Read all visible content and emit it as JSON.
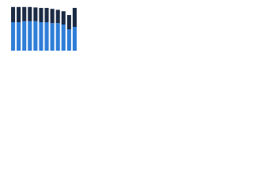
{
  "chart_data": {
    "type": "stacked_bar",
    "series": [
      {
        "color": "#2f7ed8",
        "values": [
          60,
          60,
          62,
          62,
          62,
          60,
          60,
          58,
          58,
          55,
          45,
          50
        ]
      },
      {
        "color": "#1c2b45",
        "values": [
          32,
          32,
          30,
          30,
          29,
          30,
          30,
          30,
          28,
          28,
          30,
          40
        ]
      }
    ],
    "ylim": [
      0,
      100
    ]
  }
}
